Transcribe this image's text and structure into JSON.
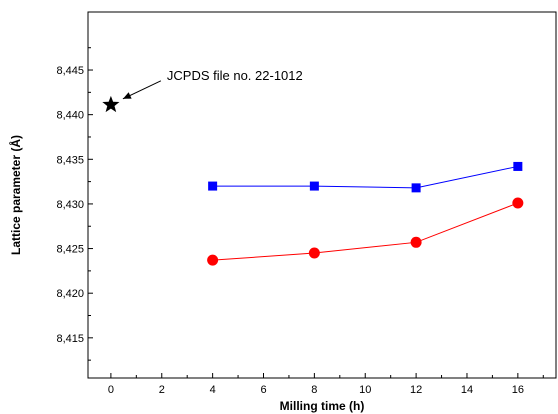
{
  "chart_data": {
    "type": "line",
    "title": "",
    "xlabel": "Milling time (h)",
    "ylabel": "Lattice parameter (Å)",
    "xlim": [
      -0.9,
      17.5
    ],
    "ylim": [
      8.4105,
      8.4515
    ],
    "xticks": [
      0,
      2,
      4,
      6,
      8,
      10,
      12,
      14,
      16
    ],
    "yticks": [
      8.415,
      8.42,
      8.425,
      8.43,
      8.435,
      8.44,
      8.445
    ],
    "ytick_labels": [
      "8,415",
      "8,420",
      "8,425",
      "8,430",
      "8,435",
      "8,440",
      "8,445"
    ],
    "grid": false,
    "series": [
      {
        "marker": "square",
        "color": "#0000ff",
        "x": [
          4,
          8,
          12,
          16
        ],
        "y": [
          8.432,
          8.432,
          8.4318,
          8.4342
        ]
      },
      {
        "marker": "circle",
        "color": "#ff0000",
        "x": [
          4,
          8,
          12,
          16
        ],
        "y": [
          8.4237,
          8.4245,
          8.4257,
          8.4301
        ]
      }
    ],
    "reference_point": {
      "marker": "star",
      "color": "#000000",
      "x": 0,
      "y": 8.4411
    },
    "annotation": {
      "text": "JCPDS file no. 22-1012",
      "x": 0,
      "y": 8.4411
    }
  }
}
